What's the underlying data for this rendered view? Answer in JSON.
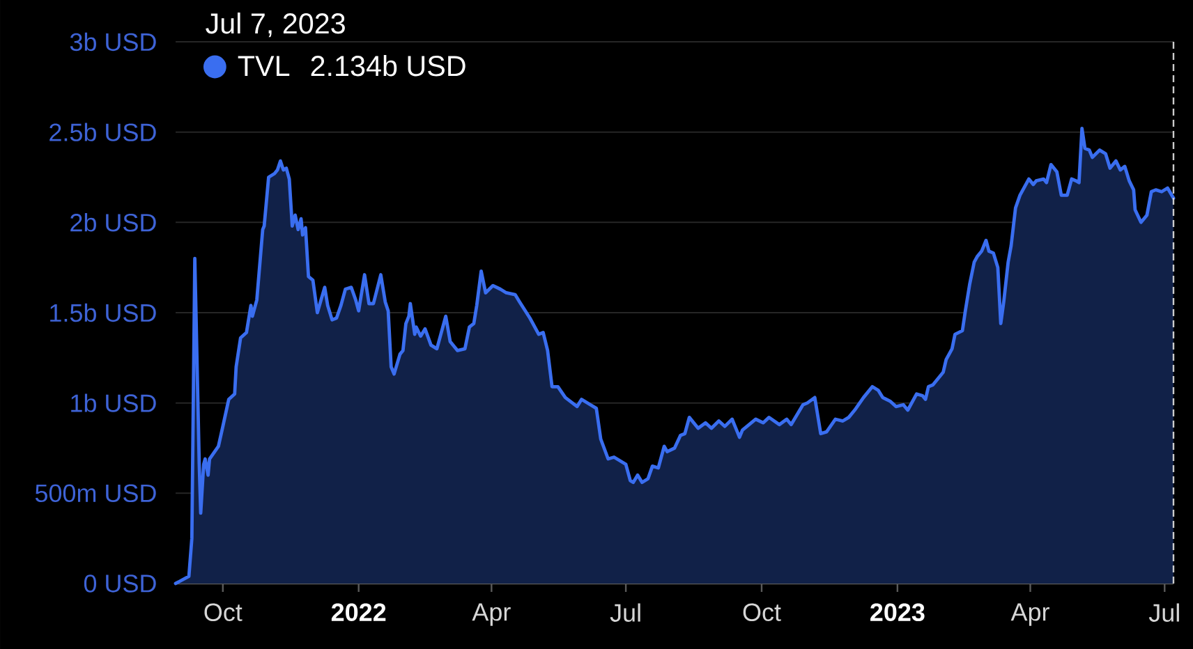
{
  "chart_data": {
    "type": "area",
    "annotations": [
      "Jul 7, 2023",
      "2.134b USD"
    ],
    "legend": "top left",
    "grid": "y",
    "xlim": [
      "2021-08-30",
      "2023-07-07"
    ],
    "xticks": [
      {
        "value": "2021-10-01",
        "label": "Oct"
      },
      {
        "value": "2022-01-01",
        "label": "2022"
      },
      {
        "value": "2022-04-01",
        "label": "Apr"
      },
      {
        "value": "2022-07-01",
        "label": "Jul"
      },
      {
        "value": "2022-10-01",
        "label": "Oct"
      },
      {
        "value": "2023-01-01",
        "label": "2023"
      },
      {
        "value": "2023-04-01",
        "label": "Apr"
      },
      {
        "value": "2023-07-01",
        "label": "Jul"
      }
    ],
    "ylim": [
      0,
      3000000000
    ],
    "yticks": [
      {
        "value": 0,
        "label": "0 USD"
      },
      {
        "value": 500000000,
        "label": "500m USD"
      },
      {
        "value": 1000000000,
        "label": "1b USD"
      },
      {
        "value": 1500000000,
        "label": "1.5b USD"
      },
      {
        "value": 2000000000,
        "label": "2b USD"
      },
      {
        "value": 2500000000,
        "label": "2.5b USD"
      },
      {
        "value": 3000000000,
        "label": "3b USD"
      }
    ],
    "ref_lines": [
      {
        "axis": "x",
        "value": "2023-07-07",
        "color": "#cccccc",
        "line_style": "dashed"
      }
    ],
    "x": [
      "2021-08-30",
      "2021-09-08",
      "2021-09-10",
      "2021-09-12",
      "2021-09-15",
      "2021-09-16",
      "2021-09-18",
      "2021-09-19",
      "2021-09-21",
      "2021-09-22",
      "2021-09-28",
      "2021-10-01",
      "2021-10-05",
      "2021-10-09",
      "2021-10-10",
      "2021-10-13",
      "2021-10-17",
      "2021-10-20",
      "2021-10-21",
      "2021-10-24",
      "2021-10-28",
      "2021-10-29",
      "2021-11-01",
      "2021-11-05",
      "2021-11-07",
      "2021-11-09",
      "2021-11-11",
      "2021-11-13",
      "2021-11-15",
      "2021-11-17",
      "2021-11-19",
      "2021-11-21",
      "2021-11-23",
      "2021-11-24",
      "2021-11-26",
      "2021-11-28",
      "2021-12-01",
      "2021-12-04",
      "2021-12-09",
      "2021-12-11",
      "2021-12-14",
      "2021-12-17",
      "2021-12-20",
      "2021-12-23",
      "2021-12-27",
      "2021-12-30",
      "2022-01-01",
      "2022-01-03",
      "2022-01-05",
      "2022-01-08",
      "2022-01-11",
      "2022-01-16",
      "2022-01-19",
      "2022-01-21",
      "2022-01-23",
      "2022-01-25",
      "2022-01-29",
      "2022-01-31",
      "2022-02-02",
      "2022-02-04",
      "2022-02-05",
      "2022-02-08",
      "2022-02-09",
      "2022-02-12",
      "2022-02-15",
      "2022-02-19",
      "2022-02-23",
      "2022-03-01",
      "2022-03-04",
      "2022-03-09",
      "2022-03-14",
      "2022-03-17",
      "2022-03-20",
      "2022-03-22",
      "2022-03-25",
      "2022-03-28",
      "2022-04-02",
      "2022-04-07",
      "2022-04-11",
      "2022-04-17",
      "2022-04-20",
      "2022-04-27",
      "2022-05-03",
      "2022-05-06",
      "2022-05-09",
      "2022-05-12",
      "2022-05-16",
      "2022-05-21",
      "2022-05-29",
      "2022-06-01",
      "2022-06-07",
      "2022-06-11",
      "2022-06-14",
      "2022-06-19",
      "2022-06-23",
      "2022-07-01",
      "2022-07-04",
      "2022-07-06",
      "2022-07-09",
      "2022-07-12",
      "2022-07-16",
      "2022-07-19",
      "2022-07-23",
      "2022-07-27",
      "2022-07-29",
      "2022-08-03",
      "2022-08-07",
      "2022-08-10",
      "2022-08-13",
      "2022-08-19",
      "2022-08-24",
      "2022-08-28",
      "2022-09-02",
      "2022-09-06",
      "2022-09-11",
      "2022-09-13",
      "2022-09-16",
      "2022-09-18",
      "2022-09-27",
      "2022-10-02",
      "2022-10-06",
      "2022-10-13",
      "2022-10-18",
      "2022-10-21",
      "2022-10-29",
      "2022-11-01",
      "2022-11-06",
      "2022-11-10",
      "2022-11-14",
      "2022-11-20",
      "2022-11-25",
      "2022-11-29",
      "2022-12-03",
      "2022-12-09",
      "2022-12-15",
      "2022-12-19",
      "2022-12-22",
      "2022-12-27",
      "2022-12-31",
      "2023-01-05",
      "2023-01-08",
      "2023-01-14",
      "2023-01-18",
      "2023-01-20",
      "2023-01-22",
      "2023-01-25",
      "2023-01-30",
      "2023-02-01",
      "2023-02-03",
      "2023-02-07",
      "2023-02-09",
      "2023-02-14",
      "2023-02-16",
      "2023-02-19",
      "2023-02-22",
      "2023-02-24",
      "2023-02-27",
      "2023-03-02",
      "2023-03-04",
      "2023-03-07",
      "2023-03-10",
      "2023-03-12",
      "2023-03-14",
      "2023-03-17",
      "2023-03-19",
      "2023-03-22",
      "2023-03-25",
      "2023-03-31",
      "2023-04-03",
      "2023-04-05",
      "2023-04-10",
      "2023-04-12",
      "2023-04-15",
      "2023-04-19",
      "2023-04-22",
      "2023-04-26",
      "2023-04-29",
      "2023-05-02",
      "2023-05-04",
      "2023-05-06",
      "2023-05-08",
      "2023-05-11",
      "2023-05-13",
      "2023-05-18",
      "2023-05-22",
      "2023-05-25",
      "2023-05-29",
      "2023-06-01",
      "2023-06-04",
      "2023-06-07",
      "2023-06-10",
      "2023-06-11",
      "2023-06-15",
      "2023-06-19",
      "2023-06-22",
      "2023-06-25",
      "2023-06-29",
      "2023-07-03",
      "2023-07-07"
    ],
    "series": [
      {
        "name": "TVL",
        "color": "#3a6ef0",
        "values": [
          0,
          40000000,
          250000000,
          1800000000,
          660000000,
          390000000,
          660000000,
          690000000,
          600000000,
          690000000,
          760000000,
          870000000,
          1020000000,
          1050000000,
          1200000000,
          1360000000,
          1390000000,
          1540000000,
          1480000000,
          1570000000,
          1960000000,
          1980000000,
          2250000000,
          2270000000,
          2290000000,
          2340000000,
          2290000000,
          2300000000,
          2240000000,
          1980000000,
          2040000000,
          1960000000,
          2020000000,
          1930000000,
          1970000000,
          1700000000,
          1680000000,
          1500000000,
          1640000000,
          1540000000,
          1460000000,
          1470000000,
          1540000000,
          1630000000,
          1640000000,
          1570000000,
          1510000000,
          1610000000,
          1710000000,
          1550000000,
          1550000000,
          1710000000,
          1560000000,
          1510000000,
          1200000000,
          1160000000,
          1270000000,
          1290000000,
          1440000000,
          1480000000,
          1550000000,
          1380000000,
          1420000000,
          1370000000,
          1410000000,
          1320000000,
          1300000000,
          1480000000,
          1340000000,
          1290000000,
          1300000000,
          1420000000,
          1440000000,
          1540000000,
          1730000000,
          1610000000,
          1650000000,
          1630000000,
          1610000000,
          1600000000,
          1560000000,
          1470000000,
          1380000000,
          1390000000,
          1290000000,
          1090000000,
          1090000000,
          1030000000,
          980000000,
          1020000000,
          990000000,
          970000000,
          800000000,
          690000000,
          700000000,
          660000000,
          570000000,
          560000000,
          600000000,
          560000000,
          580000000,
          650000000,
          640000000,
          760000000,
          730000000,
          750000000,
          820000000,
          830000000,
          920000000,
          860000000,
          890000000,
          860000000,
          900000000,
          870000000,
          910000000,
          870000000,
          810000000,
          850000000,
          910000000,
          890000000,
          920000000,
          880000000,
          910000000,
          880000000,
          990000000,
          1000000000,
          1030000000,
          830000000,
          840000000,
          910000000,
          900000000,
          920000000,
          960000000,
          1030000000,
          1090000000,
          1070000000,
          1030000000,
          1010000000,
          980000000,
          990000000,
          960000000,
          1050000000,
          1040000000,
          1020000000,
          1090000000,
          1100000000,
          1150000000,
          1170000000,
          1240000000,
          1300000000,
          1380000000,
          1400000000,
          1510000000,
          1660000000,
          1780000000,
          1810000000,
          1840000000,
          1900000000,
          1840000000,
          1830000000,
          1750000000,
          1440000000,
          1560000000,
          1780000000,
          1870000000,
          2080000000,
          2150000000,
          2240000000,
          2210000000,
          2230000000,
          2240000000,
          2220000000,
          2320000000,
          2280000000,
          2150000000,
          2150000000,
          2240000000,
          2230000000,
          2220000000,
          2520000000,
          2410000000,
          2400000000,
          2360000000,
          2400000000,
          2380000000,
          2300000000,
          2340000000,
          2290000000,
          2310000000,
          2230000000,
          2180000000,
          2070000000,
          2000000000,
          2040000000,
          2170000000,
          2180000000,
          2170000000,
          2190000000,
          2134000000
        ]
      }
    ]
  }
}
